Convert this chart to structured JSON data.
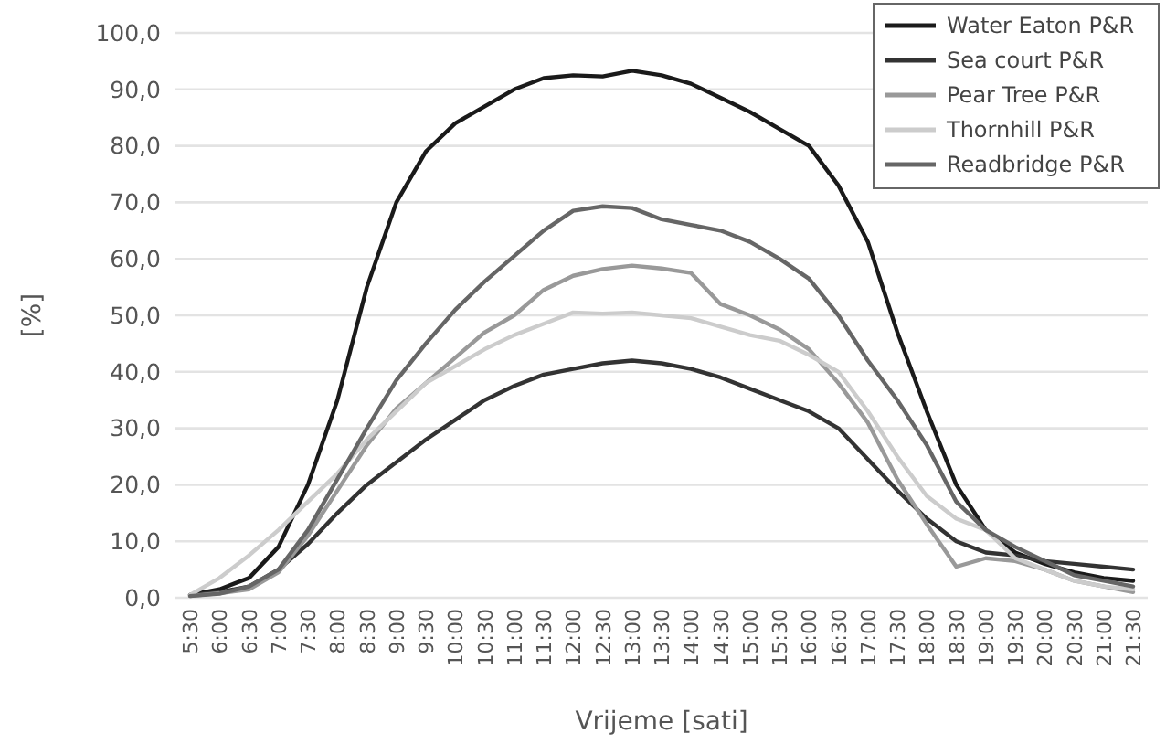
{
  "chart_data": {
    "type": "line",
    "xlabel": "Vrijeme [sati]",
    "ylabel": "[%]",
    "categories": [
      "5:30",
      "6:00",
      "6:30",
      "7:00",
      "7:30",
      "8:00",
      "8:30",
      "9:00",
      "9:30",
      "10:00",
      "10:30",
      "11:00",
      "11:30",
      "12:00",
      "12:30",
      "13:00",
      "13:30",
      "14:00",
      "14:30",
      "15:00",
      "15:30",
      "16:00",
      "16:30",
      "17:00",
      "17:30",
      "18:00",
      "18:30",
      "19:00",
      "19:30",
      "20:00",
      "20:30",
      "21:00",
      "21:30"
    ],
    "series": [
      {
        "name": "Water Eaton P&R",
        "color": "#1a1a1a",
        "values": [
          0.5,
          1.5,
          3.5,
          9,
          20,
          35,
          55,
          70,
          79,
          84,
          87,
          90,
          92,
          92.5,
          92.3,
          93.3,
          92.5,
          91,
          88.5,
          86,
          83,
          80,
          73,
          63,
          47,
          33,
          20,
          12,
          8,
          6,
          4.5,
          3.5,
          3
        ]
      },
      {
        "name": "Sea court P&R",
        "color": "#333333",
        "values": [
          0.5,
          1,
          2,
          5,
          9.5,
          15,
          20,
          24,
          28,
          31.5,
          35,
          37.5,
          39.5,
          40.5,
          41.5,
          42,
          41.5,
          40.5,
          39,
          37,
          35,
          33,
          30,
          24.5,
          19,
          14,
          10,
          8,
          7.5,
          6.5,
          6,
          5.5,
          5
        ]
      },
      {
        "name": "Pear Tree P&R",
        "color": "#999999",
        "values": [
          0.3,
          0.8,
          1.5,
          4.5,
          11,
          19,
          27,
          33.5,
          38,
          42.5,
          47,
          50,
          54.5,
          57,
          58.2,
          58.8,
          58.3,
          57.5,
          52,
          50,
          47.5,
          44,
          38,
          31,
          21,
          13,
          5.5,
          7,
          6.5,
          5,
          3,
          2,
          1
        ]
      },
      {
        "name": "Thornhill P&R",
        "color": "#cccccc",
        "values": [
          0.5,
          3.5,
          7.5,
          12,
          17,
          22,
          28,
          33,
          38,
          41,
          44,
          46.5,
          48.5,
          50.5,
          50.3,
          50.5,
          50,
          49.5,
          48,
          46.5,
          45.5,
          43,
          40,
          33,
          25,
          18,
          14,
          12,
          7,
          5,
          3,
          2,
          1.5
        ]
      },
      {
        "name": "Readbridge P&R",
        "color": "#666666",
        "values": [
          0.3,
          0.7,
          2,
          5,
          12,
          21,
          30,
          38.5,
          45,
          51,
          56,
          60.5,
          65,
          68.5,
          69.3,
          69,
          67,
          66,
          65,
          63,
          60,
          56.5,
          50,
          42,
          35,
          27,
          17,
          12,
          9,
          6.5,
          4,
          3,
          2
        ]
      }
    ],
    "ylim": [
      0,
      100
    ],
    "yticks": [
      {
        "value": 0,
        "label": "0,0"
      },
      {
        "value": 10,
        "label": "10,0"
      },
      {
        "value": 20,
        "label": "20,0"
      },
      {
        "value": 30,
        "label": "30,0"
      },
      {
        "value": 40,
        "label": "40,0"
      },
      {
        "value": 50,
        "label": "50,0"
      },
      {
        "value": 60,
        "label": "60,0"
      },
      {
        "value": 70,
        "label": "70,0"
      },
      {
        "value": 80,
        "label": "80,0"
      },
      {
        "value": 90,
        "label": "90,0"
      },
      {
        "value": 100,
        "label": "100,0"
      }
    ],
    "grid": "y",
    "legend": "top right",
    "marker": "none",
    "line_style": "solid"
  }
}
